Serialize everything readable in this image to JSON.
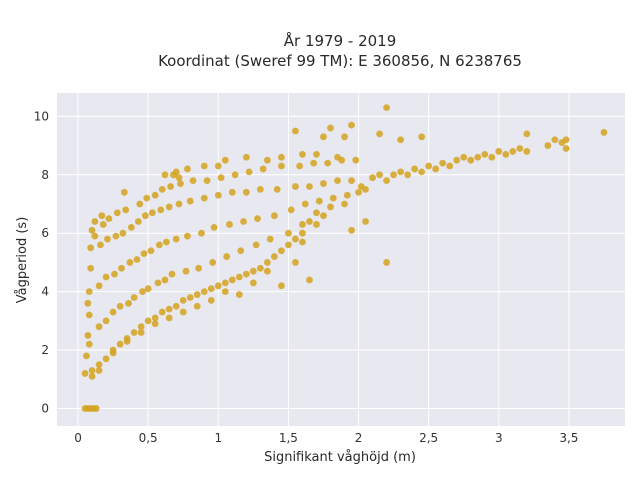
{
  "chart_data": {
    "type": "scatter",
    "title_line1": "År 1979 - 2019",
    "title_line2": "Koordinat (Sweref 99 TM): E 360856, N 6238765",
    "xlabel": "Signifikant våghöjd (m)",
    "ylabel": "Vågperiod (s)",
    "xlim": [
      -0.15,
      3.9
    ],
    "ylim": [
      -0.6,
      10.8
    ],
    "x_ticks": [
      0,
      0.5,
      1,
      1.5,
      2,
      2.5,
      3,
      3.5
    ],
    "x_tick_labels": [
      "0",
      "0,5",
      "1",
      "1,5",
      "2",
      "2,5",
      "3",
      "3,5"
    ],
    "y_ticks": [
      0,
      2,
      4,
      6,
      8,
      10
    ],
    "y_tick_labels": [
      "0",
      "2",
      "4",
      "6",
      "8",
      "10"
    ],
    "grid": true,
    "marker_color": "#D4A21F",
    "plot_background": "#E8E8F0",
    "points": [
      [
        0.05,
        0.0
      ],
      [
        0.07,
        0.0
      ],
      [
        0.09,
        0.0
      ],
      [
        0.11,
        0.0
      ],
      [
        0.13,
        0.0
      ],
      [
        0.05,
        1.2
      ],
      [
        0.06,
        1.8
      ],
      [
        0.07,
        2.5
      ],
      [
        0.08,
        3.2
      ],
      [
        0.08,
        4.0
      ],
      [
        0.09,
        4.8
      ],
      [
        0.09,
        5.5
      ],
      [
        0.1,
        6.1
      ],
      [
        0.07,
        3.6
      ],
      [
        0.08,
        2.2
      ],
      [
        0.1,
        1.3
      ],
      [
        0.12,
        5.9
      ],
      [
        0.12,
        6.4
      ],
      [
        0.15,
        1.5
      ],
      [
        0.15,
        2.8
      ],
      [
        0.15,
        4.2
      ],
      [
        0.16,
        5.6
      ],
      [
        0.17,
        6.6
      ],
      [
        0.18,
        6.3
      ],
      [
        0.2,
        1.7
      ],
      [
        0.2,
        3.0
      ],
      [
        0.2,
        4.5
      ],
      [
        0.21,
        5.8
      ],
      [
        0.22,
        6.5
      ],
      [
        0.25,
        2.0
      ],
      [
        0.25,
        3.3
      ],
      [
        0.26,
        4.6
      ],
      [
        0.27,
        5.9
      ],
      [
        0.28,
        6.7
      ],
      [
        0.3,
        2.2
      ],
      [
        0.3,
        3.5
      ],
      [
        0.31,
        4.8
      ],
      [
        0.32,
        6.0
      ],
      [
        0.33,
        7.4
      ],
      [
        0.34,
        6.8
      ],
      [
        0.35,
        2.4
      ],
      [
        0.36,
        3.6
      ],
      [
        0.37,
        5.0
      ],
      [
        0.38,
        6.2
      ],
      [
        0.4,
        2.6
      ],
      [
        0.4,
        3.8
      ],
      [
        0.42,
        5.1
      ],
      [
        0.43,
        6.4
      ],
      [
        0.44,
        7.0
      ],
      [
        0.45,
        2.8
      ],
      [
        0.46,
        4.0
      ],
      [
        0.47,
        5.3
      ],
      [
        0.48,
        6.6
      ],
      [
        0.49,
        7.2
      ],
      [
        0.5,
        3.0
      ],
      [
        0.5,
        4.1
      ],
      [
        0.52,
        5.4
      ],
      [
        0.53,
        6.7
      ],
      [
        0.55,
        7.3
      ],
      [
        0.55,
        3.1
      ],
      [
        0.57,
        4.3
      ],
      [
        0.58,
        5.6
      ],
      [
        0.59,
        6.8
      ],
      [
        0.6,
        7.5
      ],
      [
        0.6,
        3.3
      ],
      [
        0.62,
        4.4
      ],
      [
        0.63,
        5.7
      ],
      [
        0.65,
        6.9
      ],
      [
        0.66,
        7.6
      ],
      [
        0.68,
        8.0
      ],
      [
        0.65,
        3.4
      ],
      [
        0.67,
        4.6
      ],
      [
        0.7,
        5.8
      ],
      [
        0.72,
        7.0
      ],
      [
        0.73,
        7.7
      ],
      [
        0.72,
        7.9
      ],
      [
        0.7,
        3.5
      ],
      [
        0.75,
        3.7
      ],
      [
        0.77,
        4.7
      ],
      [
        0.78,
        5.9
      ],
      [
        0.8,
        7.1
      ],
      [
        0.82,
        7.8
      ],
      [
        0.8,
        3.8
      ],
      [
        0.85,
        3.9
      ],
      [
        0.86,
        4.8
      ],
      [
        0.88,
        6.0
      ],
      [
        0.9,
        7.2
      ],
      [
        0.92,
        7.8
      ],
      [
        0.9,
        4.0
      ],
      [
        0.95,
        4.1
      ],
      [
        0.96,
        5.0
      ],
      [
        0.97,
        6.2
      ],
      [
        1.0,
        7.3
      ],
      [
        1.02,
        7.9
      ],
      [
        1.0,
        4.2
      ],
      [
        1.05,
        4.3
      ],
      [
        1.06,
        5.2
      ],
      [
        1.08,
        6.3
      ],
      [
        1.1,
        7.4
      ],
      [
        1.12,
        8.0
      ],
      [
        1.1,
        4.4
      ],
      [
        1.15,
        4.5
      ],
      [
        1.16,
        5.4
      ],
      [
        1.18,
        6.4
      ],
      [
        1.2,
        7.4
      ],
      [
        1.22,
        8.1
      ],
      [
        1.2,
        4.6
      ],
      [
        1.25,
        4.7
      ],
      [
        1.27,
        5.6
      ],
      [
        1.28,
        6.5
      ],
      [
        1.3,
        7.5
      ],
      [
        1.32,
        8.2
      ],
      [
        1.3,
        4.8
      ],
      [
        1.35,
        5.0
      ],
      [
        1.37,
        5.8
      ],
      [
        1.4,
        6.6
      ],
      [
        1.42,
        7.5
      ],
      [
        1.45,
        8.3
      ],
      [
        1.4,
        5.2
      ],
      [
        1.45,
        5.4
      ],
      [
        1.5,
        6.0
      ],
      [
        1.52,
        6.8
      ],
      [
        1.55,
        7.6
      ],
      [
        1.58,
        8.3
      ],
      [
        1.5,
        5.6
      ],
      [
        1.55,
        5.8
      ],
      [
        1.6,
        6.3
      ],
      [
        1.62,
        7.0
      ],
      [
        1.65,
        7.6
      ],
      [
        1.68,
        8.4
      ],
      [
        1.6,
        6.0
      ],
      [
        1.65,
        6.4
      ],
      [
        1.7,
        6.7
      ],
      [
        1.72,
        7.1
      ],
      [
        1.75,
        7.7
      ],
      [
        1.78,
        8.4
      ],
      [
        1.75,
        6.6
      ],
      [
        1.8,
        6.9
      ],
      [
        1.82,
        7.2
      ],
      [
        1.85,
        7.8
      ],
      [
        1.88,
        8.5
      ],
      [
        1.9,
        7.0
      ],
      [
        1.92,
        7.3
      ],
      [
        1.95,
        7.8
      ],
      [
        1.98,
        8.5
      ],
      [
        2.0,
        7.4
      ],
      [
        2.02,
        7.6
      ],
      [
        2.05,
        7.5
      ],
      [
        2.1,
        7.9
      ],
      [
        2.15,
        8.0
      ],
      [
        2.2,
        7.8
      ],
      [
        2.25,
        8.0
      ],
      [
        2.3,
        8.1
      ],
      [
        2.35,
        8.0
      ],
      [
        2.4,
        8.2
      ],
      [
        2.45,
        8.1
      ],
      [
        2.5,
        8.3
      ],
      [
        2.55,
        8.2
      ],
      [
        2.6,
        8.4
      ],
      [
        2.65,
        8.3
      ],
      [
        2.7,
        8.5
      ],
      [
        2.75,
        8.6
      ],
      [
        2.8,
        8.5
      ],
      [
        2.85,
        8.6
      ],
      [
        2.9,
        8.7
      ],
      [
        2.95,
        8.6
      ],
      [
        3.0,
        8.8
      ],
      [
        3.05,
        8.7
      ],
      [
        3.1,
        8.8
      ],
      [
        3.15,
        8.9
      ],
      [
        3.2,
        8.8
      ],
      [
        3.2,
        9.4
      ],
      [
        3.35,
        9.0
      ],
      [
        3.4,
        9.2
      ],
      [
        3.45,
        9.1
      ],
      [
        3.48,
        9.2
      ],
      [
        3.48,
        8.9
      ],
      [
        3.75,
        9.45
      ],
      [
        2.2,
        10.3
      ],
      [
        1.95,
        9.7
      ],
      [
        1.8,
        9.6
      ],
      [
        1.55,
        9.5
      ],
      [
        1.75,
        9.3
      ],
      [
        2.15,
        9.4
      ],
      [
        2.45,
        9.3
      ],
      [
        2.3,
        9.2
      ],
      [
        1.9,
        9.3
      ],
      [
        2.2,
        5.0
      ],
      [
        1.95,
        6.1
      ],
      [
        2.05,
        6.4
      ],
      [
        1.55,
        5.0
      ],
      [
        1.65,
        4.4
      ],
      [
        1.45,
        4.2
      ],
      [
        1.6,
        5.7
      ],
      [
        1.7,
        6.3
      ],
      [
        1.35,
        4.7
      ],
      [
        1.25,
        4.3
      ],
      [
        1.15,
        3.9
      ],
      [
        1.05,
        4.0
      ],
      [
        0.95,
        3.7
      ],
      [
        0.85,
        3.5
      ],
      [
        0.75,
        3.3
      ],
      [
        0.65,
        3.1
      ],
      [
        0.55,
        2.9
      ],
      [
        0.45,
        2.6
      ],
      [
        0.35,
        2.3
      ],
      [
        0.25,
        1.9
      ],
      [
        0.15,
        1.3
      ],
      [
        0.1,
        1.1
      ],
      [
        0.62,
        8.0
      ],
      [
        0.7,
        8.1
      ],
      [
        0.78,
        8.2
      ],
      [
        0.9,
        8.3
      ],
      [
        1.0,
        8.3
      ],
      [
        1.05,
        8.5
      ],
      [
        1.2,
        8.6
      ],
      [
        1.35,
        8.5
      ],
      [
        1.45,
        8.6
      ],
      [
        1.6,
        8.7
      ],
      [
        1.7,
        8.7
      ],
      [
        1.85,
        8.6
      ]
    ]
  }
}
